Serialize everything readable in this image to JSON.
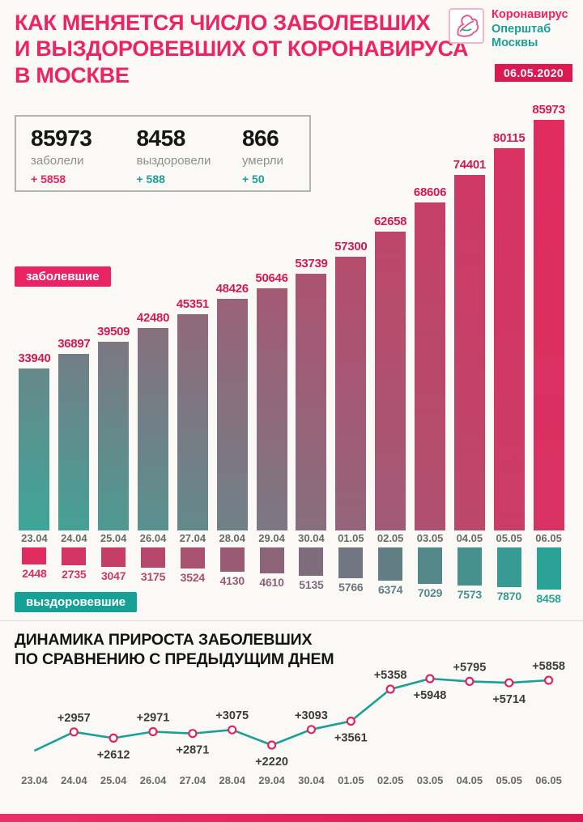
{
  "colors": {
    "pink": "#ee2366",
    "crimson_badge": "#dc1a52",
    "teal": "#1aa096",
    "bar_value_label": "#cf1c55",
    "trend_label": "#3c3c3c"
  },
  "header": {
    "title_lines": [
      "КАК МЕНЯЕТСЯ ЧИСЛО ЗАБОЛЕВШИХ",
      "И ВЫЗДОРОВЕВШИХ ОТ КОРОНАВИРУСА",
      "В МОСКВЕ"
    ],
    "logo_lines": [
      "Коронавирус",
      "Оперштаб",
      "Москвы"
    ],
    "date": "06.05.2020"
  },
  "stats": [
    {
      "value": "85973",
      "label": "заболели",
      "delta": "+ 5858"
    },
    {
      "value": "8458",
      "label": "выздоровели",
      "delta": "+ 588"
    },
    {
      "value": "866",
      "label": "умерли",
      "delta": "+ 50"
    }
  ],
  "badges": {
    "infected": "заболевшие",
    "recovered": "выздоровевшие"
  },
  "section2": {
    "title_lines": [
      "ДИНАМИКА ПРИРОСТА ЗАБОЛЕВШИХ",
      "ПО СРАВНЕНИЮ С ПРЕДЫДУЩИМ ДНЕМ"
    ]
  },
  "chart_data": [
    {
      "type": "bar",
      "name": "infected-cumulative",
      "title": "заболевшие",
      "categories": [
        "23.04",
        "24.04",
        "25.04",
        "26.04",
        "27.04",
        "28.04",
        "29.04",
        "30.04",
        "01.05",
        "02.05",
        "03.05",
        "04.05",
        "05.05",
        "06.05"
      ],
      "values": [
        33940,
        36897,
        39509,
        42480,
        45351,
        48426,
        50646,
        53739,
        57300,
        62658,
        68606,
        74401,
        80115,
        85973
      ],
      "ylim": [
        0,
        85973
      ],
      "color_gradient": [
        "#3ea698",
        "#e02c5f"
      ],
      "legend_position": "left-badge"
    },
    {
      "type": "bar",
      "name": "recovered-cumulative",
      "title": "выздоровевшие",
      "categories": [
        "23.04",
        "24.04",
        "25.04",
        "26.04",
        "27.04",
        "28.04",
        "29.04",
        "30.04",
        "01.05",
        "02.05",
        "03.05",
        "04.05",
        "05.05",
        "06.05"
      ],
      "values": [
        2448,
        2735,
        3047,
        3175,
        3524,
        4130,
        4610,
        5135,
        5766,
        6374,
        7029,
        7573,
        7870,
        8458
      ],
      "ylim": [
        0,
        8458
      ],
      "color_gradient": [
        "#e02c5f",
        "#2aa396"
      ],
      "legend_position": "left-badge"
    },
    {
      "type": "line",
      "name": "daily-increase",
      "title": "ДИНАМИКА ПРИРОСТА ЗАБОЛЕВШИХ ПО СРАВНЕНИЮ С ПРЕДЫДУЩИМ ДНЕМ",
      "categories": [
        "23.04",
        "24.04",
        "25.04",
        "26.04",
        "27.04",
        "28.04",
        "29.04",
        "30.04",
        "01.05",
        "02.05",
        "03.05",
        "04.05",
        "05.05",
        "06.05"
      ],
      "values": [
        1900,
        2957,
        2612,
        2971,
        2871,
        3075,
        2220,
        3093,
        3561,
        5358,
        5948,
        5795,
        5714,
        5858
      ],
      "first_value_estimated": true,
      "labels": [
        "",
        "+2957",
        "+2612",
        "+2971",
        "+2871",
        "+3075",
        "+2220",
        "+3093",
        "+3561",
        "+5358",
        "+5948",
        "+5795",
        "+5714",
        "+5858"
      ],
      "label_side": [
        "",
        "above",
        "below",
        "above",
        "below",
        "above",
        "below",
        "above",
        "below",
        "above",
        "below",
        "above",
        "below",
        "above"
      ],
      "ylim": [
        1900,
        6000
      ],
      "grid": false,
      "line_color": "#1aa096",
      "marker_stroke": "#e0255e"
    }
  ]
}
